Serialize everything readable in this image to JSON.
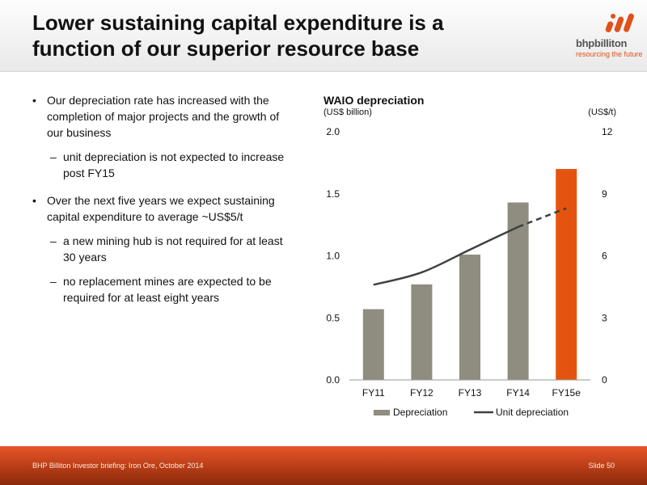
{
  "header": {
    "title": "Lower sustaining capital expenditure is a function of our superior resource base",
    "logo_name": "bhpbilliton",
    "logo_tagline": "resourcing the future"
  },
  "bullets": [
    {
      "text": "Our depreciation rate has increased with the completion of major projects and the growth of our business",
      "subs": [
        "unit depreciation is not expected to increase post FY15"
      ]
    },
    {
      "text": "Over the next five years we expect sustaining capital expenditure to average ~US$5/t",
      "subs": [
        "a new mining hub is not required for at least 30 years",
        "no replacement mines are expected to be required for at least eight years"
      ]
    }
  ],
  "chart_data": {
    "type": "bar",
    "title": "WAIO depreciation",
    "ylabel": "(US$ billion)",
    "y2label": "(US$/t)",
    "categories": [
      "FY11",
      "FY12",
      "FY13",
      "FY14",
      "FY15e"
    ],
    "series": [
      {
        "name": "Depreciation",
        "type": "bar",
        "axis": "left",
        "values": [
          0.57,
          0.77,
          1.01,
          1.43,
          1.7
        ],
        "colors": [
          "#8e8d7f",
          "#8e8d7f",
          "#8e8d7f",
          "#8e8d7f",
          "#e5540e"
        ]
      },
      {
        "name": "Unit depreciation",
        "type": "line",
        "axis": "right",
        "values": [
          4.6,
          5.2,
          6.3,
          7.4,
          8.3
        ],
        "dashed_from_index": 3,
        "color": "#404040"
      }
    ],
    "ylim": [
      0,
      2.0
    ],
    "yticks": [
      "0.0",
      "0.5",
      "1.0",
      "1.5",
      "2.0"
    ],
    "y2lim": [
      0,
      12
    ],
    "y2ticks": [
      "0",
      "3",
      "6",
      "9",
      "12"
    ],
    "grid": false,
    "legend_position": "bottom"
  },
  "footer": {
    "text": "BHP Billiton Investor briefing: Iron Ore, October 2014",
    "slide": "Slide 50"
  }
}
